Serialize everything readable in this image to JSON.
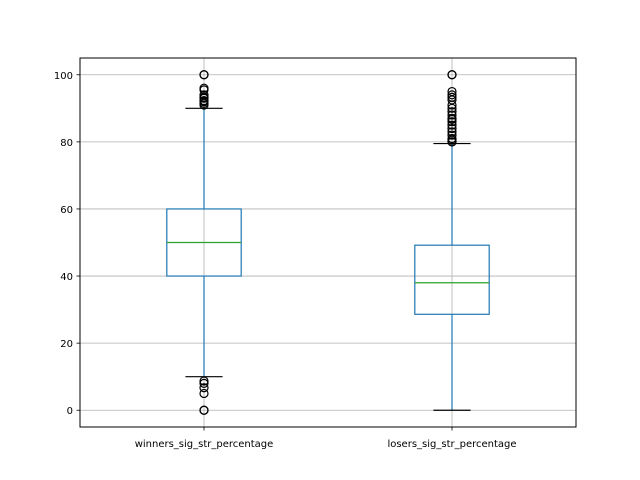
{
  "chart_data": {
    "type": "box",
    "title": "",
    "xlabel": "",
    "ylabel": "",
    "categories": [
      "winners_sig_str_percentage",
      "losers_sig_str_percentage"
    ],
    "ylim": [
      -5,
      105
    ],
    "yticks": [
      0,
      20,
      40,
      60,
      80,
      100
    ],
    "grid": true,
    "colors": {
      "box": "#1f77b4",
      "median": "#2ca02c",
      "grid": "#b0b0b0",
      "flier": "#000000"
    },
    "boxes": [
      {
        "name": "winners_sig_str_percentage",
        "whisker_low": 10,
        "q1": 40,
        "median": 50,
        "q3": 60,
        "whisker_high": 90,
        "fliers": [
          0,
          0,
          5,
          6.7,
          8,
          8.7,
          91,
          91.5,
          92,
          92.3,
          93,
          93.3,
          94,
          95.5,
          96,
          100,
          100
        ]
      },
      {
        "name": "losers_sig_str_percentage",
        "whisker_low": 0,
        "q1": 28.6,
        "median": 38,
        "q3": 49.2,
        "whisker_high": 79.5,
        "fliers": [
          80,
          80,
          80.5,
          81,
          82,
          83,
          84,
          85,
          86,
          86.7,
          87,
          88,
          89,
          90,
          91,
          92.5,
          93.3,
          94,
          95,
          100,
          100
        ]
      }
    ]
  }
}
